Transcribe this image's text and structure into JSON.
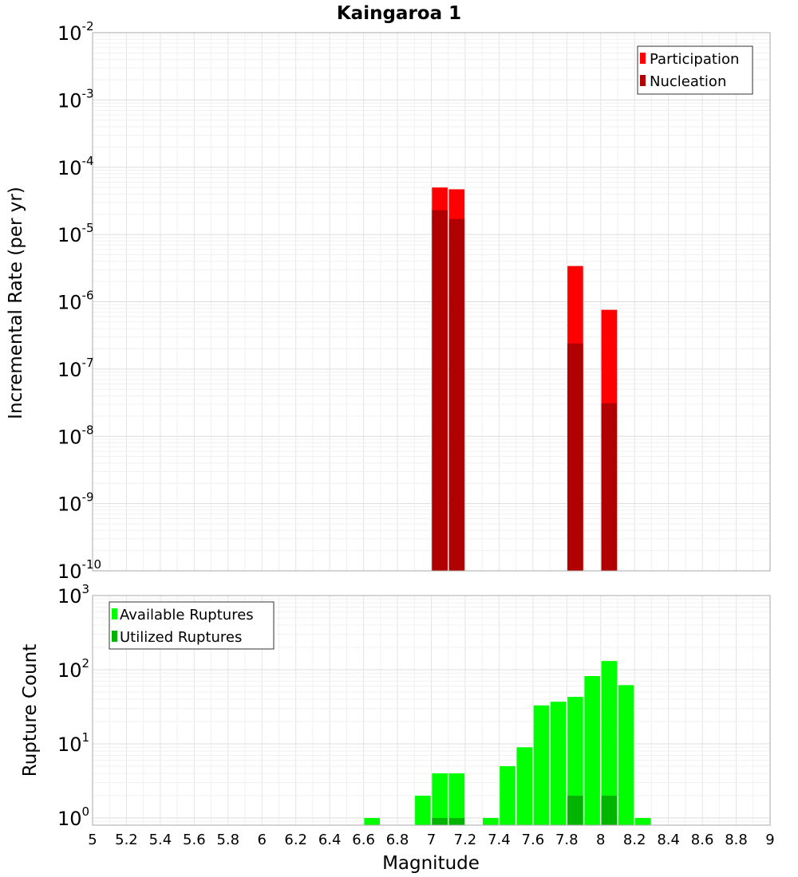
{
  "chart_data": [
    {
      "type": "bar",
      "title": "Kaingaroa 1",
      "xlabel": "",
      "ylabel": "Incremental Rate (per yr)",
      "xlim": [
        5,
        9
      ],
      "ylim": [
        1e-10,
        0.01
      ],
      "yscale": "log",
      "grid": true,
      "legend_position": "top-right",
      "ytick_labels": [
        {
          "base": "10",
          "exp": "-10"
        },
        {
          "base": "10",
          "exp": "-9"
        },
        {
          "base": "10",
          "exp": "-8"
        },
        {
          "base": "10",
          "exp": "-7"
        },
        {
          "base": "10",
          "exp": "-6"
        },
        {
          "base": "10",
          "exp": "-5"
        },
        {
          "base": "10",
          "exp": "-4"
        },
        {
          "base": "10",
          "exp": "-3"
        },
        {
          "base": "10",
          "exp": "-2"
        }
      ],
      "series": [
        {
          "name": "Participation",
          "color": "#ff0000",
          "x": [
            7.05,
            7.15,
            7.85,
            8.05
          ],
          "values": [
            5e-05,
            4.7e-05,
            3.4e-06,
            7.6e-07
          ]
        },
        {
          "name": "Nucleation",
          "color": "#b00000",
          "x": [
            7.05,
            7.15,
            7.85,
            8.05
          ],
          "values": [
            2.3e-05,
            1.7e-05,
            2.4e-07,
            3.1e-08
          ]
        }
      ]
    },
    {
      "type": "bar",
      "title": "",
      "xlabel": "Magnitude",
      "ylabel": "Rupture Count",
      "xlim": [
        5,
        9
      ],
      "ylim": [
        0.8,
        1000
      ],
      "yscale": "log",
      "grid": true,
      "legend_position": "top-left",
      "ytick_labels": [
        {
          "base": "10",
          "exp": "0"
        },
        {
          "base": "10",
          "exp": "1"
        },
        {
          "base": "10",
          "exp": "2"
        },
        {
          "base": "10",
          "exp": "3"
        }
      ],
      "xtick_labels": [
        "5",
        "5.2",
        "5.4",
        "5.6",
        "5.8",
        "6",
        "6.2",
        "6.4",
        "6.6",
        "6.8",
        "7",
        "7.2",
        "7.4",
        "7.6",
        "7.8",
        "8",
        "8.2",
        "8.4",
        "8.6",
        "8.8",
        "9"
      ],
      "series": [
        {
          "name": "Available Ruptures",
          "color": "#00ff00",
          "x": [
            6.65,
            6.95,
            7.05,
            7.15,
            7.35,
            7.45,
            7.55,
            7.65,
            7.75,
            7.85,
            7.95,
            8.05,
            8.15,
            8.25
          ],
          "values": [
            1,
            2,
            4,
            4,
            1,
            5,
            9,
            33,
            37,
            43,
            82,
            131,
            62,
            1
          ]
        },
        {
          "name": "Utilized Ruptures",
          "color": "#00b400",
          "x": [
            7.05,
            7.15,
            7.85,
            8.05
          ],
          "values": [
            1,
            1,
            2,
            2
          ]
        }
      ]
    }
  ]
}
